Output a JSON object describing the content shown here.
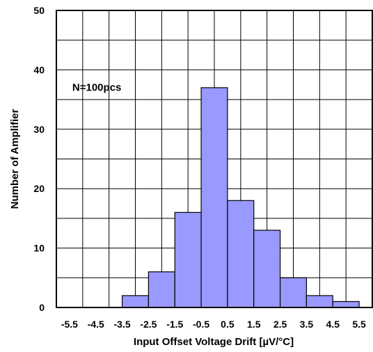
{
  "chart_data": {
    "type": "bar",
    "xlabel": "Input Offset Voltage Drift [µV/°C]",
    "ylabel": "Number of Amplifier",
    "annotation": "N=100pcs",
    "x_ticks": [
      "-5.5",
      "-4.5",
      "-3.5",
      "-2.5",
      "-1.5",
      "-0.5",
      "0.5",
      "1.5",
      "2.5",
      "3.5",
      "4.5",
      "5.5"
    ],
    "y_ticks": [
      "0",
      "10",
      "20",
      "30",
      "40",
      "50"
    ],
    "ylim": [
      0,
      50
    ],
    "bin_edges": [
      -5.5,
      -4.5,
      -3.5,
      -2.5,
      -1.5,
      -0.5,
      0.5,
      1.5,
      2.5,
      3.5,
      4.5,
      5.5
    ],
    "values": [
      0,
      0,
      2,
      6,
      16,
      37,
      18,
      13,
      5,
      2,
      1
    ],
    "grid": true,
    "bar_color": "#9999ff",
    "bar_edge_color": "#000000"
  }
}
